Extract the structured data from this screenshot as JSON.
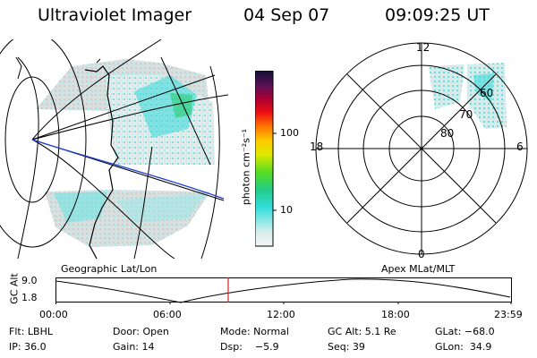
{
  "header": {
    "title": "Ultraviolet Imager",
    "date": "04 Sep 07",
    "time": "09:09:25 UT"
  },
  "colorbar": {
    "unit_label": "photon cm⁻²s⁻¹",
    "ticks": [
      "100",
      "10"
    ]
  },
  "polar": {
    "mlt_labels": {
      "top": "12",
      "left": "18",
      "right": "6",
      "bottom": "0"
    },
    "lat_labels": [
      "60",
      "70",
      "80"
    ]
  },
  "map_labels": {
    "left": "Geographic Lat/Lon",
    "right": "Apex MLat/MLT"
  },
  "timeline": {
    "axis_label": "GC Alt",
    "y_ticks": [
      "9.0",
      "1.8"
    ],
    "x_ticks": [
      "00:00",
      "06:00",
      "12:00",
      "18:00",
      "23:59"
    ],
    "marker_color": "#dd2222"
  },
  "info": {
    "row1": [
      "Flt: LBHL",
      "Door: Open",
      "Mode: Normal",
      "GC Alt: 5.1 Re",
      "GLat: −68.0"
    ],
    "row2": [
      "IP: 36.0",
      "Gain: 14",
      "Dsp:    −5.9",
      "Seq: 39",
      "GLon:  34.9"
    ]
  }
}
